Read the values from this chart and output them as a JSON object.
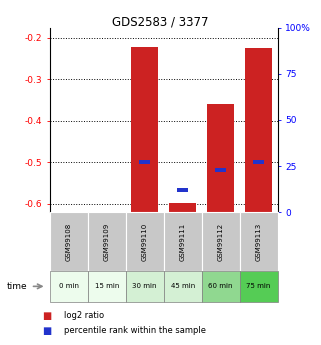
{
  "title": "GDS2583 / 3377",
  "samples": [
    "GSM99108",
    "GSM99109",
    "GSM99110",
    "GSM99111",
    "GSM99112",
    "GSM99113"
  ],
  "time_labels": [
    "0 min",
    "15 min",
    "30 min",
    "45 min",
    "60 min",
    "75 min"
  ],
  "log2_values": [
    null,
    null,
    -0.222,
    -0.598,
    -0.358,
    -0.225
  ],
  "percentile_values": [
    null,
    null,
    27,
    12,
    23,
    27
  ],
  "ylim_left": [
    -0.62,
    -0.175
  ],
  "left_ticks": [
    -0.6,
    -0.5,
    -0.4,
    -0.3,
    -0.2
  ],
  "right_ticks": [
    0,
    25,
    50,
    75,
    100
  ],
  "right_tick_labels": [
    "0",
    "25",
    "50",
    "75",
    "100%"
  ],
  "bar_color_red": "#cc2222",
  "bar_color_blue": "#2233cc",
  "sample_bg_color": "#c8c8c8",
  "time_bg_colors": [
    "#edfced",
    "#edfced",
    "#d4f0d4",
    "#d4f0d4",
    "#90d890",
    "#55cc55"
  ],
  "legend_red_label": "log2 ratio",
  "legend_blue_label": "percentile rank within the sample",
  "bar_width": 0.7,
  "pct_bar_width": 0.28
}
